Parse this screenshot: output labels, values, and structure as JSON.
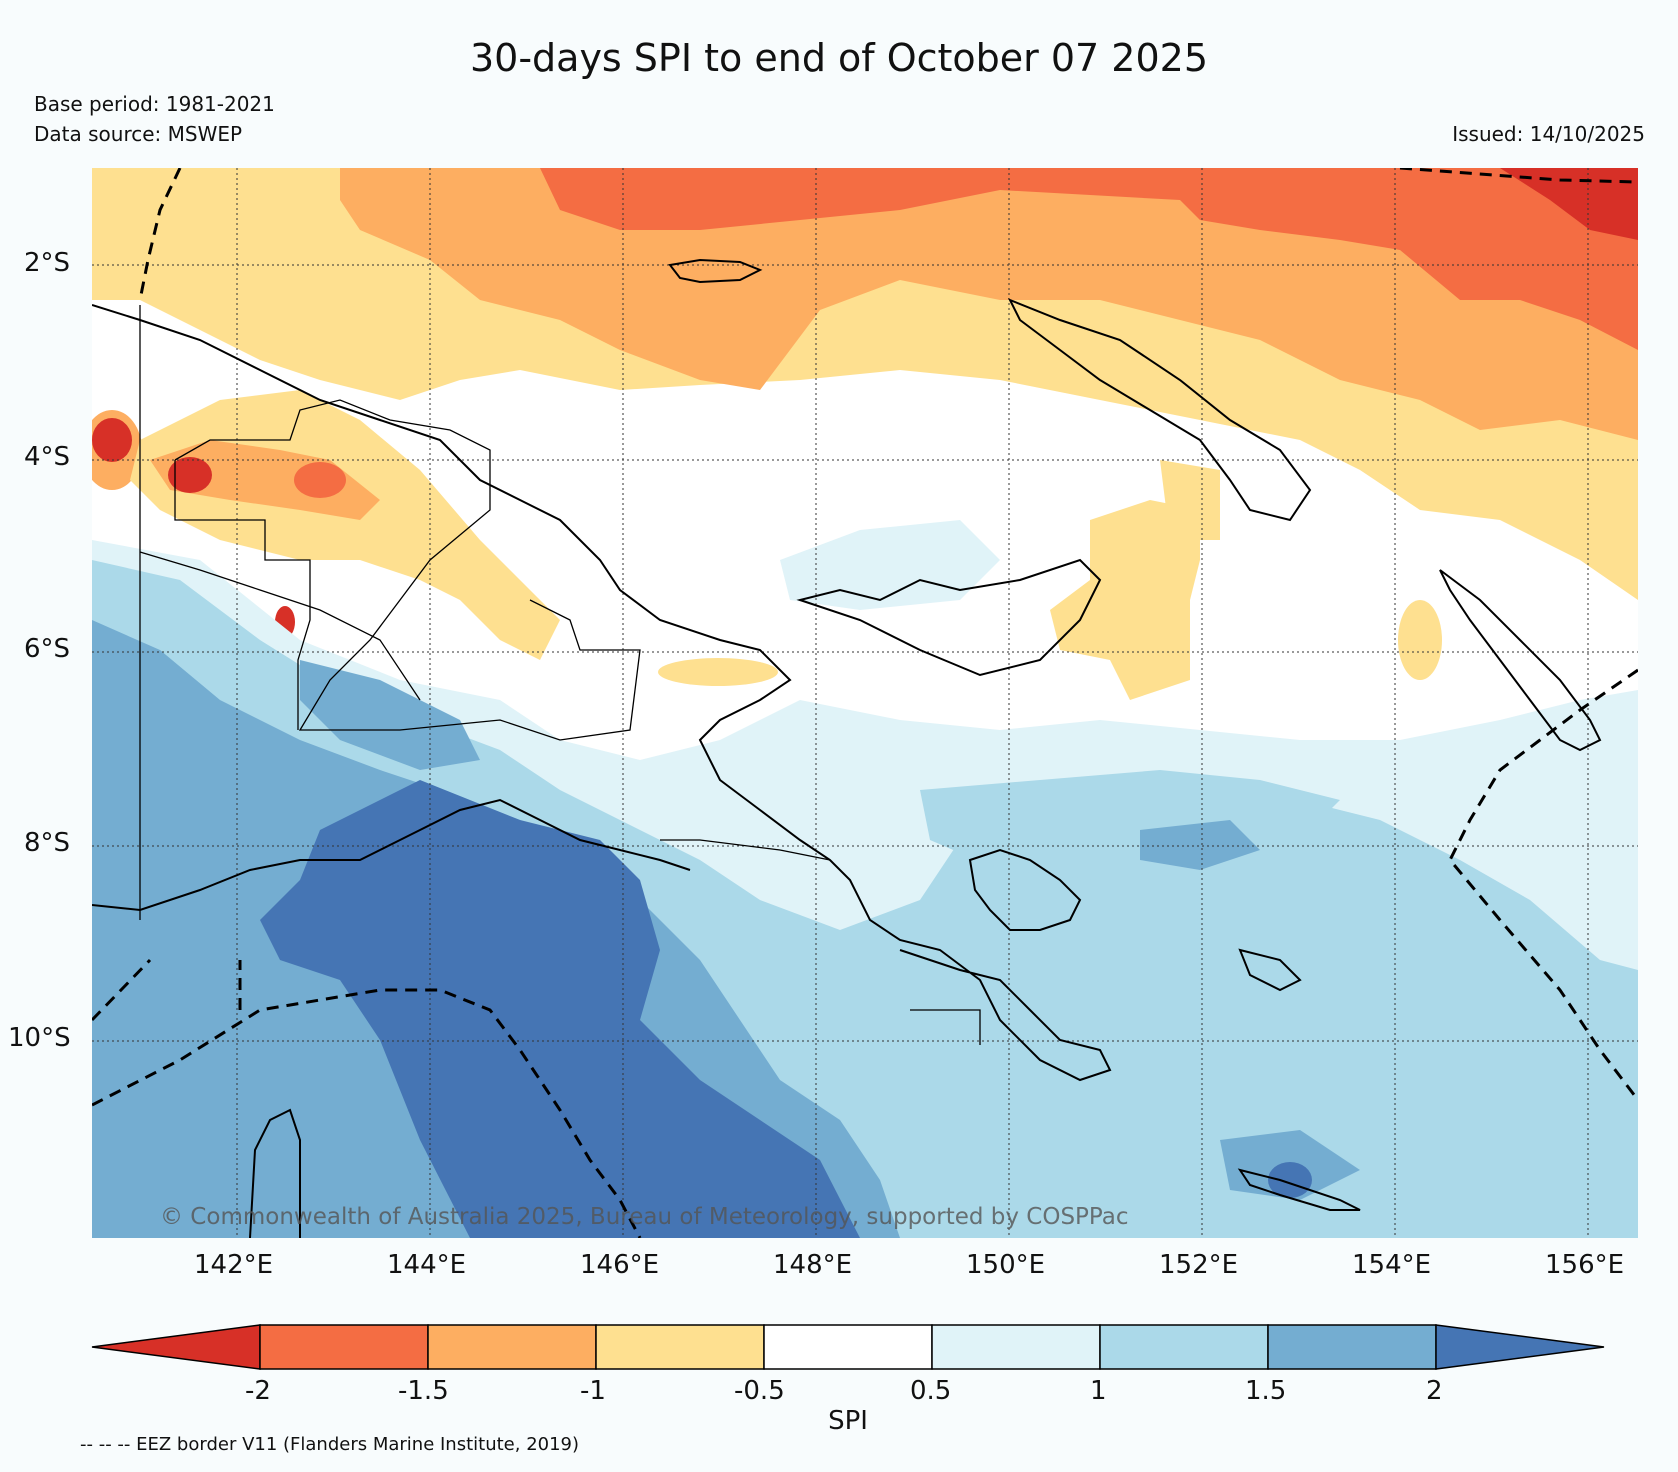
{
  "title": "30-days SPI to end of October 07 2025",
  "base_period": "Base period: 1981-2021",
  "data_source": "Data source: MSWEP",
  "issued": "Issued: 14/10/2025",
  "copyright": "© Commonwealth of Australia 2025, Bureau of Meteorology, supported by COSPPac",
  "eez_note": "-- -- -- EEZ border V11 (Flanders Marine Institute, 2019)",
  "colorbar": {
    "label": "SPI",
    "ticks": [
      "-2",
      "-1.5",
      "-1",
      "-0.5",
      "0.5",
      "1",
      "1.5",
      "2"
    ],
    "colors": [
      "#d73027",
      "#f46d43",
      "#fdae61",
      "#fee090",
      "#ffffff",
      "#e0f3f8",
      "#abd9e9",
      "#74add1",
      "#4575b4"
    ]
  },
  "axes": {
    "lat_labels": [
      "2°S",
      "4°S",
      "6°S",
      "8°S",
      "10°S"
    ],
    "lon_labels": [
      "142°E",
      "144°E",
      "146°E",
      "148°E",
      "150°E",
      "152°E",
      "154°E",
      "156°E"
    ]
  }
}
